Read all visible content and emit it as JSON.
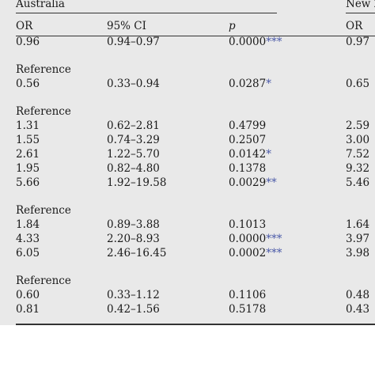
{
  "table": {
    "group_left": "Australia",
    "group_right": "New Z",
    "columns": [
      "OR",
      "95% CI",
      "p"
    ],
    "right_columns": [
      "OR"
    ],
    "rows": [
      {
        "or": "0.96",
        "ci": "0.94–0.97",
        "p": "0.0000",
        "sig": "***",
        "or2": "0.97"
      },
      {
        "ref": "Reference"
      },
      {
        "or": "0.56",
        "ci": "0.33–0.94",
        "p": "0.0287",
        "sig": "*",
        "or2": "0.65"
      },
      {
        "ref": "Reference"
      },
      {
        "or": "1.31",
        "ci": "0.62–2.81",
        "p": "0.4799",
        "sig": "",
        "or2": "2.59"
      },
      {
        "or": "1.55",
        "ci": "0.74–3.29",
        "p": "0.2507",
        "sig": "",
        "or2": "3.00"
      },
      {
        "or": "2.61",
        "ci": "1.22–5.70",
        "p": "0.0142",
        "sig": "*",
        "or2": "7.52"
      },
      {
        "or": "1.95",
        "ci": "0.82–4.80",
        "p": "0.1378",
        "sig": "",
        "or2": "9.32"
      },
      {
        "or": "5.66",
        "ci": "1.92–19.58",
        "p": "0.0029",
        "sig": "**",
        "or2": "5.46"
      },
      {
        "ref": "Reference"
      },
      {
        "or": "1.84",
        "ci": "0.89–3.88",
        "p": "0.1013",
        "sig": "",
        "or2": "1.64"
      },
      {
        "or": "4.33",
        "ci": "2.20–8.93",
        "p": "0.0000",
        "sig": "***",
        "or2": "3.97"
      },
      {
        "or": "6.05",
        "ci": "2.46–16.45",
        "p": "0.0002",
        "sig": "***",
        "or2": "3.98"
      },
      {
        "ref": "Reference"
      },
      {
        "or": "0.60",
        "ci": "0.33–1.12",
        "p": "0.1106",
        "sig": "",
        "or2": "0.48"
      },
      {
        "or": "0.81",
        "ci": "0.42–1.56",
        "p": "0.5178",
        "sig": "",
        "or2": "0.43"
      }
    ]
  }
}
